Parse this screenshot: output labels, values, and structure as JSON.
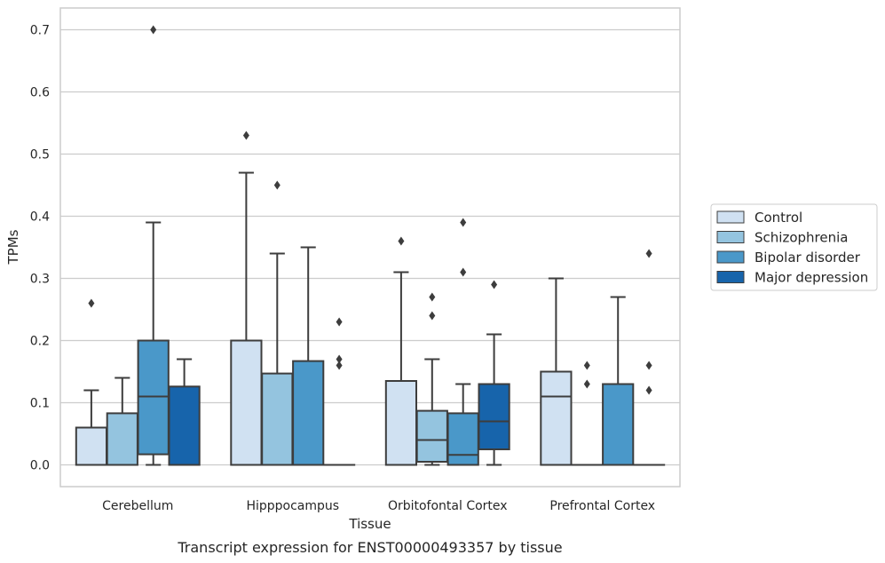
{
  "chart_data": {
    "type": "box",
    "title": "",
    "caption": "Transcript expression for ENST00000493357 by tissue",
    "xlabel": "Tissue",
    "ylabel": "TPMs",
    "ylim": [
      -0.035,
      0.735
    ],
    "yticks": [
      0.0,
      0.1,
      0.2,
      0.3,
      0.4,
      0.5,
      0.6,
      0.7
    ],
    "ytick_labels": [
      "0.0",
      "0.1",
      "0.2",
      "0.3",
      "0.4",
      "0.5",
      "0.6",
      "0.7"
    ],
    "grid": true,
    "legend_position": "right",
    "categories": [
      "Cerebellum",
      "Hipppocampus",
      "Orbitofontal Cortex",
      "Prefrontal Cortex"
    ],
    "series": [
      {
        "name": "Control",
        "color": "#d0e1f2",
        "boxes": [
          {
            "q1": 0.0,
            "median": 0.0,
            "q3": 0.06,
            "whisker_low": 0.0,
            "whisker_high": 0.12,
            "outliers": [
              0.26
            ]
          },
          {
            "q1": 0.0,
            "median": 0.0,
            "q3": 0.2,
            "whisker_low": 0.0,
            "whisker_high": 0.47,
            "outliers": [
              0.53
            ]
          },
          {
            "q1": 0.0,
            "median": 0.0,
            "q3": 0.135,
            "whisker_low": 0.0,
            "whisker_high": 0.31,
            "outliers": [
              0.36
            ]
          },
          {
            "q1": 0.0,
            "median": 0.11,
            "q3": 0.15,
            "whisker_low": 0.0,
            "whisker_high": 0.3,
            "outliers": []
          }
        ]
      },
      {
        "name": "Schizophrenia",
        "color": "#94c4df",
        "boxes": [
          {
            "q1": 0.0,
            "median": 0.0,
            "q3": 0.083,
            "whisker_low": 0.0,
            "whisker_high": 0.14,
            "outliers": []
          },
          {
            "q1": 0.0,
            "median": 0.0,
            "q3": 0.147,
            "whisker_low": 0.0,
            "whisker_high": 0.34,
            "outliers": [
              0.45
            ]
          },
          {
            "q1": 0.005,
            "median": 0.04,
            "q3": 0.087,
            "whisker_low": 0.0,
            "whisker_high": 0.17,
            "outliers": [
              0.24,
              0.27
            ]
          },
          {
            "q1": 0.0,
            "median": 0.0,
            "q3": 0.0,
            "whisker_low": 0.0,
            "whisker_high": 0.0,
            "outliers": [
              0.13,
              0.16
            ]
          }
        ]
      },
      {
        "name": "Bipolar disorder",
        "color": "#4a98c9",
        "boxes": [
          {
            "q1": 0.017,
            "median": 0.11,
            "q3": 0.2,
            "whisker_low": 0.0,
            "whisker_high": 0.39,
            "outliers": [
              0.7
            ]
          },
          {
            "q1": 0.0,
            "median": 0.0,
            "q3": 0.167,
            "whisker_low": 0.0,
            "whisker_high": 0.35,
            "outliers": []
          },
          {
            "q1": 0.0,
            "median": 0.016,
            "q3": 0.083,
            "whisker_low": 0.0,
            "whisker_high": 0.13,
            "outliers": [
              0.31,
              0.39
            ]
          },
          {
            "q1": 0.0,
            "median": 0.0,
            "q3": 0.13,
            "whisker_low": 0.0,
            "whisker_high": 0.27,
            "outliers": []
          }
        ]
      },
      {
        "name": "Major depression",
        "color": "#1764ab",
        "boxes": [
          {
            "q1": 0.0,
            "median": 0.0,
            "q3": 0.126,
            "whisker_low": 0.0,
            "whisker_high": 0.17,
            "outliers": []
          },
          {
            "q1": 0.0,
            "median": 0.0,
            "q3": 0.0,
            "whisker_low": 0.0,
            "whisker_high": 0.0,
            "outliers": [
              0.16,
              0.17,
              0.23
            ]
          },
          {
            "q1": 0.025,
            "median": 0.07,
            "q3": 0.13,
            "whisker_low": 0.0,
            "whisker_high": 0.21,
            "outliers": [
              0.29
            ]
          },
          {
            "q1": 0.0,
            "median": 0.0,
            "q3": 0.0,
            "whisker_low": 0.0,
            "whisker_high": 0.0,
            "outliers": [
              0.12,
              0.16,
              0.34
            ]
          }
        ]
      }
    ]
  }
}
